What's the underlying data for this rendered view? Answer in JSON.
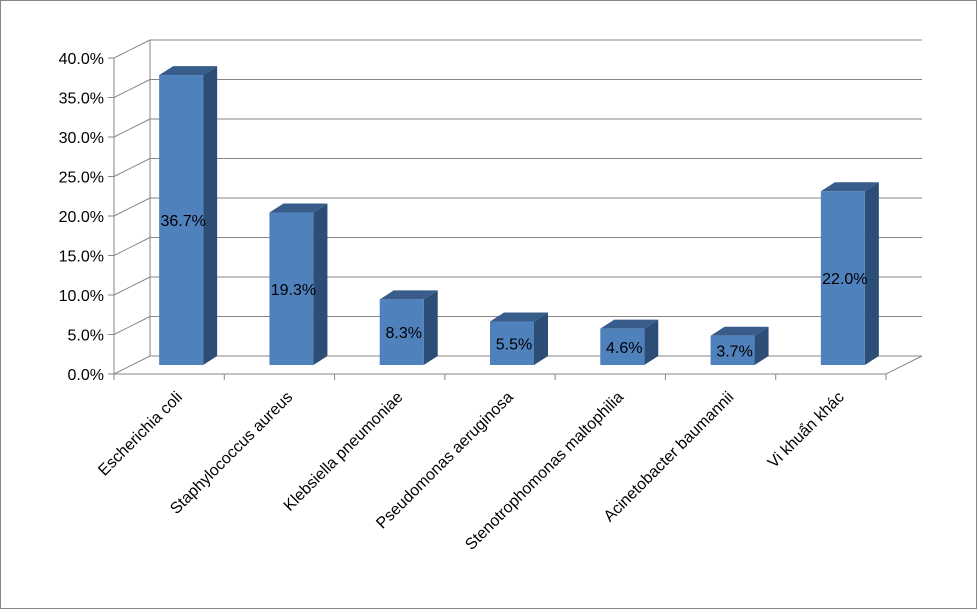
{
  "chart_data": {
    "type": "bar",
    "style": "3d-column",
    "categories": [
      "Escherichia coli",
      "Staphylococcus aureus",
      "Klebsiella pneumoniae",
      "Pseudomonas aeruginosa",
      "Stenotrophomonas maltophilia",
      "Acinetobacter baumannii",
      "Vi khuẩn khác"
    ],
    "values": [
      36.7,
      19.3,
      8.3,
      5.5,
      4.6,
      3.7,
      22.0
    ],
    "data_labels": [
      "36.7%",
      "19.3%",
      "8.3%",
      "5.5%",
      "4.6%",
      "3.7%",
      "22.0%"
    ],
    "y_ticks": [
      "0.0%",
      "5.0%",
      "10.0%",
      "15.0%",
      "20.0%",
      "25.0%",
      "30.0%",
      "35.0%",
      "40.0%"
    ],
    "ylim": [
      0,
      40
    ],
    "grid": true,
    "legend": "none",
    "colors": {
      "bar_front": "#4F81BD",
      "bar_side": "#2C4D75",
      "bar_top": "#385D8A",
      "gridline": "#868686"
    }
  }
}
